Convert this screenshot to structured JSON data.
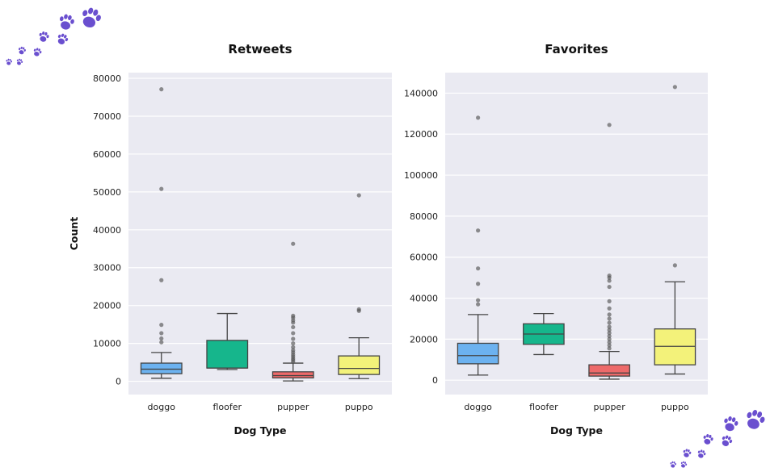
{
  "chart_data": [
    {
      "type": "box",
      "title": "Retweets",
      "xlabel": "Dog Type",
      "ylabel": "Count",
      "categories": [
        "doggo",
        "floofer",
        "pupper",
        "puppo"
      ],
      "ylim": [
        -3500,
        81500
      ],
      "yticks": [
        0,
        10000,
        20000,
        30000,
        40000,
        50000,
        60000,
        70000,
        80000
      ],
      "yticklabels": [
        "0",
        "10000",
        "20000",
        "30000",
        "40000",
        "50000",
        "60000",
        "70000",
        "80000"
      ],
      "grid": true,
      "boxes": [
        {
          "category": "doggo",
          "color": "#6cb2f0",
          "whisker_low": 800,
          "q1": 2000,
          "median": 3200,
          "q3": 4800,
          "whisker_high": 7600,
          "outliers": [
            10300,
            11300,
            12700,
            14900,
            26700,
            50800,
            77100
          ]
        },
        {
          "category": "floofer",
          "color": "#16b68c",
          "whisker_low": 3100,
          "q1": 3500,
          "median": 3500,
          "q3": 10800,
          "whisker_high": 17900,
          "outliers": []
        },
        {
          "category": "pupper",
          "color": "#ed6a6a",
          "whisker_low": 100,
          "q1": 900,
          "median": 1500,
          "q3": 2500,
          "whisker_high": 4800,
          "outliers": [
            5100,
            5600,
            6000,
            6500,
            7000,
            7600,
            8200,
            9000,
            10000,
            11200,
            12700,
            14300,
            15500,
            16100,
            16800,
            17300,
            36300
          ]
        },
        {
          "category": "puppo",
          "color": "#f3f27a",
          "whisker_low": 700,
          "q1": 1800,
          "median": 3400,
          "q3": 6700,
          "whisker_high": 11500,
          "outliers": [
            18600,
            19000,
            49100
          ]
        }
      ]
    },
    {
      "type": "box",
      "title": "Favorites",
      "xlabel": "Dog Type",
      "ylabel": "",
      "categories": [
        "doggo",
        "floofer",
        "pupper",
        "puppo"
      ],
      "ylim": [
        -7000,
        150000
      ],
      "yticks": [
        0,
        20000,
        40000,
        60000,
        80000,
        100000,
        120000,
        140000
      ],
      "yticklabels": [
        "0",
        "20000",
        "40000",
        "60000",
        "80000",
        "100000",
        "120000",
        "140000"
      ],
      "grid": true,
      "boxes": [
        {
          "category": "doggo",
          "color": "#6cb2f0",
          "whisker_low": 2500,
          "q1": 8000,
          "median": 12000,
          "q3": 18000,
          "whisker_high": 32000,
          "outliers": [
            37000,
            39000,
            47000,
            54500,
            73000,
            128000
          ]
        },
        {
          "category": "floofer",
          "color": "#16b68c",
          "whisker_low": 12500,
          "q1": 17500,
          "median": 22500,
          "q3": 27500,
          "whisker_high": 32500,
          "outliers": []
        },
        {
          "category": "pupper",
          "color": "#ed6a6a",
          "whisker_low": 500,
          "q1": 2000,
          "median": 3500,
          "q3": 7500,
          "whisker_high": 14000,
          "outliers": [
            15500,
            17000,
            18500,
            20000,
            21500,
            23000,
            24500,
            26000,
            28000,
            30000,
            32000,
            35000,
            38500,
            45500,
            48500,
            50000,
            51000,
            124500
          ]
        },
        {
          "category": "puppo",
          "color": "#f3f27a",
          "whisker_low": 3000,
          "q1": 7500,
          "median": 16500,
          "q3": 25000,
          "whisker_high": 48000,
          "outliers": [
            56000,
            143000
          ]
        }
      ]
    }
  ],
  "decorations": {
    "icon": "paw-print-icon",
    "color": "#6a4fcf"
  }
}
